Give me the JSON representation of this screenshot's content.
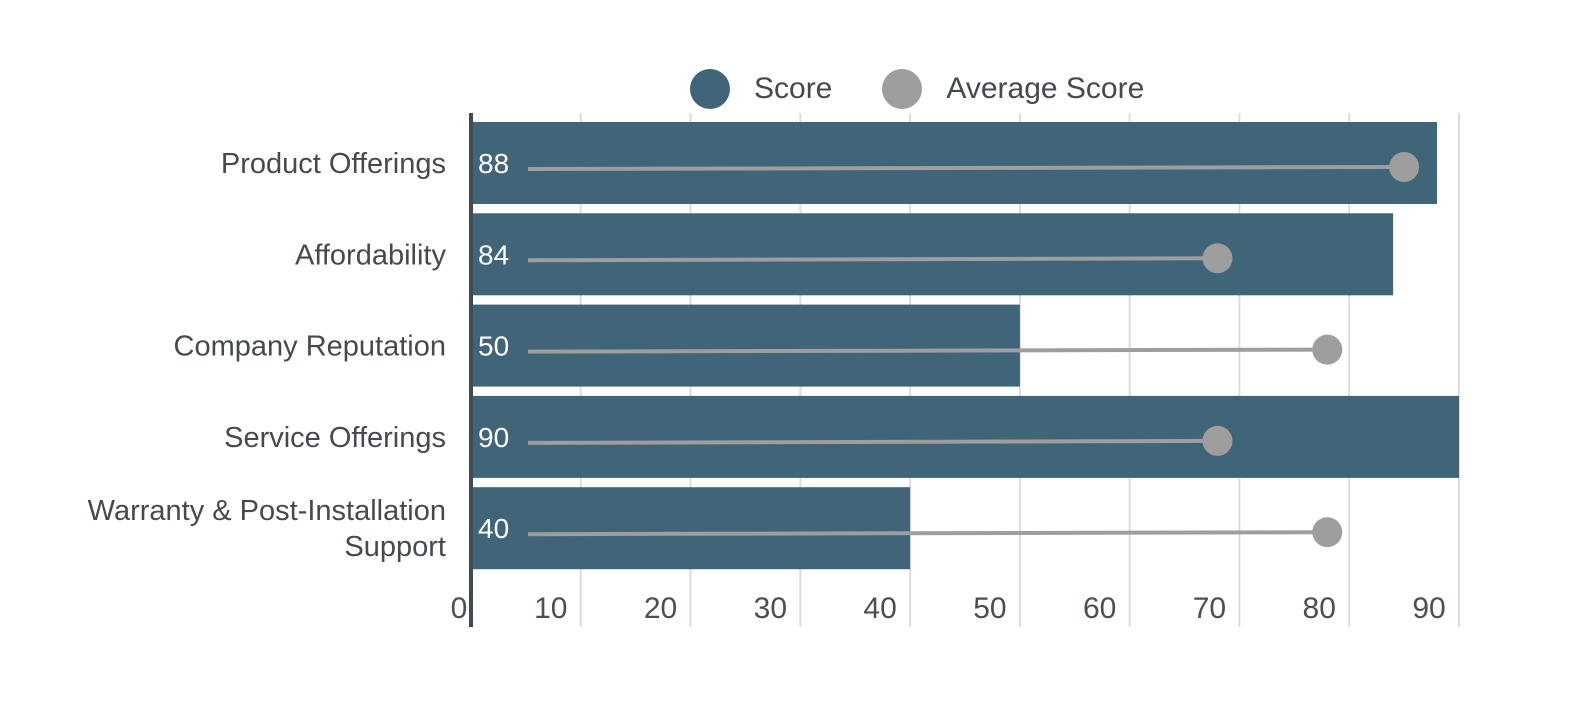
{
  "chart_data": {
    "type": "bar",
    "orientation": "horizontal",
    "categories": [
      "Product Offerings",
      "Affordability",
      "Company Reputation",
      "Service Offerings",
      "Warranty & Post-Installation Support"
    ],
    "category_lines": [
      [
        "Product Offerings"
      ],
      [
        "Affordability"
      ],
      [
        "Company Reputation"
      ],
      [
        "Service Offerings"
      ],
      [
        "Warranty & Post-Installation",
        "Support"
      ]
    ],
    "series": [
      {
        "name": "Score",
        "mark": "bar",
        "values": [
          88,
          84,
          50,
          90,
          40
        ],
        "color": "#406478"
      },
      {
        "name": "Average Score",
        "mark": "lollipop",
        "values": [
          85,
          68,
          78,
          68,
          78
        ],
        "color": "#9e9e9e"
      }
    ],
    "data_labels": [
      "88",
      "84",
      "50",
      "90",
      "40"
    ],
    "xlim": [
      0,
      90
    ],
    "xticks": [
      0,
      10,
      20,
      30,
      40,
      50,
      60,
      70,
      80,
      90
    ],
    "xtick_labels": [
      "0",
      "10",
      "20",
      "30",
      "40",
      "50",
      "60",
      "70",
      "80",
      "90"
    ],
    "legend": {
      "placement": "top-center",
      "entries": [
        "Score",
        "Average Score"
      ]
    },
    "grid": true,
    "title": "",
    "xlabel": "",
    "ylabel": ""
  }
}
